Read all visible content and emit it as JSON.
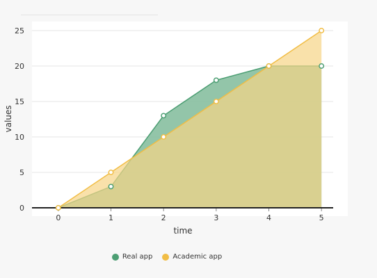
{
  "chart_data": {
    "type": "area",
    "x": [
      0,
      1,
      2,
      3,
      4,
      5
    ],
    "xlabel": "time",
    "ylabel": "values",
    "xlim": [
      -0.5,
      5.5
    ],
    "ylim": [
      0,
      25
    ],
    "yticks": [
      0,
      5,
      10,
      15,
      20,
      25
    ],
    "xticks": [
      0,
      1,
      2,
      3,
      4,
      5
    ],
    "grid": true,
    "legend_position": "bottom",
    "series": [
      {
        "name": "Real app",
        "values": [
          0,
          3,
          13,
          18,
          20,
          20
        ],
        "color": "#4c9e73",
        "fill": "#8dc2a4"
      },
      {
        "name": "Academic app",
        "values": [
          0,
          5,
          10,
          15,
          20,
          25
        ],
        "color": "#f1bd45",
        "fill": "#f7d486"
      }
    ]
  },
  "colors": {
    "background": "#f7f7f7",
    "plot_background": "#ffffff",
    "grid": "#e6e6e6",
    "axis": "#222222",
    "overlap": "#c9b95a"
  }
}
